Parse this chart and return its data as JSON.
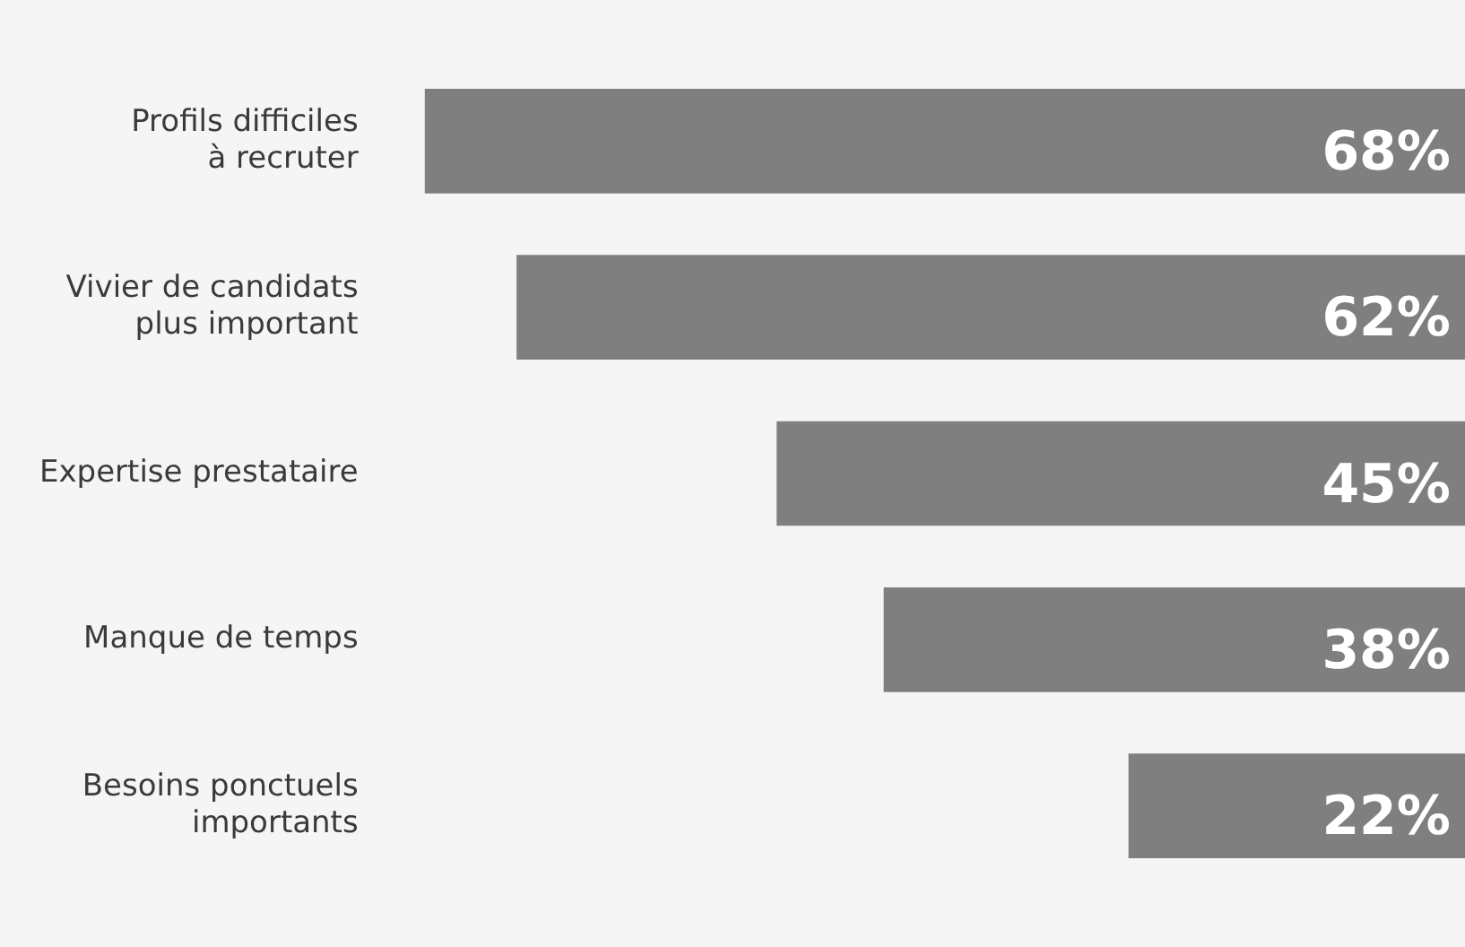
{
  "chart_data": {
    "type": "bar",
    "orientation": "horizontal",
    "categories": [
      "Profils difficiles à recruter",
      "Vivier de candidats plus important",
      "Expertise prestataire",
      "Manque de temps",
      "Besoins ponctuels importants"
    ],
    "values": [
      68,
      62,
      45,
      38,
      22
    ],
    "value_labels": [
      "68%",
      "62%",
      "45%",
      "38%",
      "22%"
    ],
    "color": "#7f7f7f"
  }
}
